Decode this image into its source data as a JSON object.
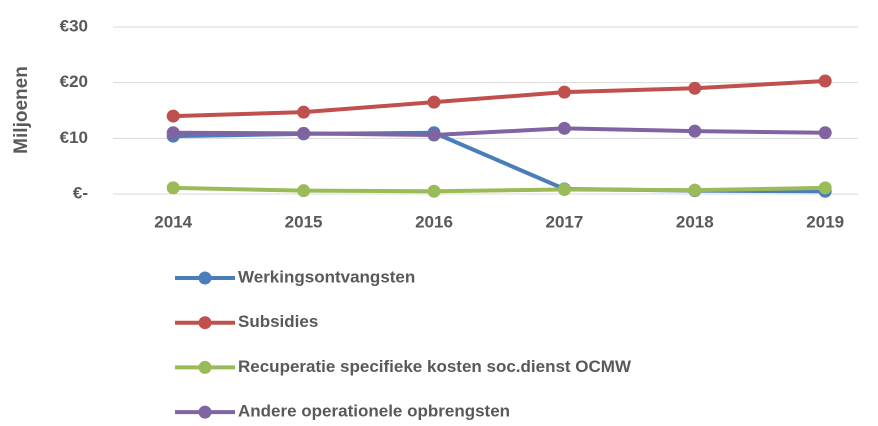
{
  "chart_data": {
    "type": "line",
    "ylabel": "Miljoenen",
    "categories": [
      "2014",
      "2015",
      "2016",
      "2017",
      "2018",
      "2019"
    ],
    "series": [
      {
        "name": "Werkingsontvangsten",
        "color": "#4a7ebb",
        "values": [
          10.4,
          10.8,
          11.0,
          0.9,
          0.6,
          0.5
        ]
      },
      {
        "name": "Subsidies",
        "color": "#c0504d",
        "values": [
          14.0,
          14.7,
          16.5,
          18.3,
          19.0,
          20.3
        ]
      },
      {
        "name": "Recuperatie specifieke kosten soc.dienst OCMW",
        "color": "#9bbb59",
        "values": [
          1.1,
          0.6,
          0.5,
          0.8,
          0.7,
          1.1
        ]
      },
      {
        "name": "Andere operationele opbrengsten",
        "color": "#8064a2",
        "values": [
          11.0,
          10.9,
          10.6,
          11.8,
          11.3,
          11.0
        ]
      }
    ],
    "ylim": [
      0,
      30
    ],
    "yticks": [
      {
        "value": 0,
        "label": "€-"
      },
      {
        "value": 10,
        "label": "€10"
      },
      {
        "value": 20,
        "label": "€20"
      },
      {
        "value": 30,
        "label": "€30"
      }
    ],
    "grid": true,
    "legend": "bottom"
  }
}
